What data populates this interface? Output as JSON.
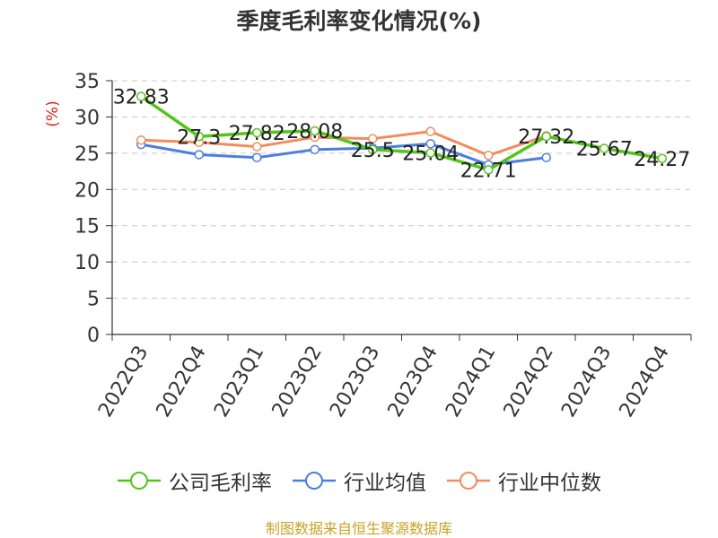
{
  "chart_data": {
    "type": "line",
    "title": "季度毛利率变化情况(%)",
    "ylabel": "(%)",
    "xlabel": "",
    "ylim": [
      0,
      35
    ],
    "yticks": [
      0,
      5,
      10,
      15,
      20,
      25,
      30,
      35
    ],
    "grid": true,
    "legend_position": "bottom",
    "categories": [
      "2022Q3",
      "2022Q4",
      "2023Q1",
      "2023Q2",
      "2023Q3",
      "2023Q4",
      "2024Q1",
      "2024Q2",
      "2024Q3",
      "2024Q4"
    ],
    "series": [
      {
        "name": "公司毛利率",
        "color": "#52c41a",
        "values": [
          32.83,
          27.3,
          27.82,
          28.08,
          25.5,
          25.04,
          22.71,
          27.32,
          25.67,
          24.27
        ],
        "labels": [
          "32.83",
          "27.3",
          "27.82",
          "28.08",
          "25.5",
          "25.04",
          "22.71",
          "27.32",
          "25.67",
          "24.27"
        ]
      },
      {
        "name": "行业均值",
        "color": "#4a7ee0",
        "values": [
          26.2,
          24.8,
          24.4,
          25.5,
          25.7,
          26.3,
          23.4,
          24.4,
          null,
          null
        ]
      },
      {
        "name": "行业中位数",
        "color": "#f28c5a",
        "values": [
          26.8,
          26.5,
          25.9,
          27.2,
          27.0,
          28.0,
          24.7,
          27.4,
          null,
          null
        ]
      }
    ]
  },
  "footer": {
    "source": "制图数据来自恒生聚源数据库"
  }
}
